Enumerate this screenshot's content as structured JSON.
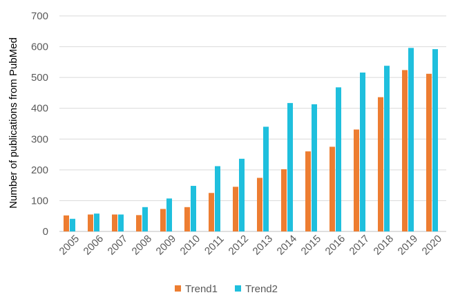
{
  "chart_data": {
    "type": "bar",
    "title": "",
    "xlabel": "",
    "ylabel": "Number of publications from PubMed",
    "ylim": [
      0,
      700
    ],
    "yticks": [
      0,
      100,
      200,
      300,
      400,
      500,
      600,
      700
    ],
    "grid": "horizontal",
    "legend_position": "bottom",
    "categories": [
      "2005",
      "2006",
      "2007",
      "2008",
      "2009",
      "2010",
      "2011",
      "2012",
      "2013",
      "2014",
      "2015",
      "2016",
      "2017",
      "2018",
      "2019",
      "2020"
    ],
    "series": [
      {
        "name": "Trend1",
        "color": "#ed7d31",
        "values": [
          52,
          55,
          55,
          53,
          73,
          79,
          125,
          145,
          174,
          202,
          260,
          275,
          331,
          436,
          524,
          512
        ]
      },
      {
        "name": "Trend2",
        "color": "#1fbfdd",
        "values": [
          41,
          58,
          55,
          79,
          107,
          148,
          212,
          236,
          340,
          417,
          413,
          468,
          516,
          538,
          596,
          592
        ]
      }
    ]
  }
}
